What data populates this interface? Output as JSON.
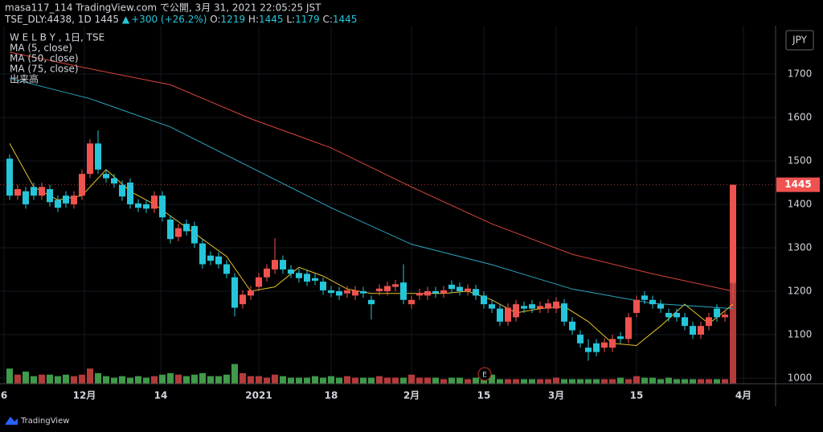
{
  "header": {
    "publisher": "masa117_114 TradingView.com で公開, 3月 31, 2021 22:05:25 JST",
    "symbol": "TSE_DLY:4438, 1D",
    "last": "1445",
    "arrow": "▲",
    "change": "+300 (+26.2%)",
    "ohlc": [
      {
        "label": "O:",
        "value": "1219"
      },
      {
        "label": "H:",
        "value": "1445"
      },
      {
        "label": "L:",
        "value": "1179"
      },
      {
        "label": "C:",
        "value": "1445"
      }
    ]
  },
  "chart_data": {
    "type": "candlestick",
    "title": "W E L B Y , 1日, TSE",
    "currency": "JPY",
    "volume_name": "出来高",
    "event_label": "E",
    "up_color": "#ef5350",
    "down_color": "#26c6da",
    "volume_up_color": "#b53a3a",
    "volume_down_color": "#3f9a4a",
    "open": [
      1505,
      1420,
      1430,
      1440,
      1420,
      1435,
      1410,
      1420,
      1400,
      1420,
      1470,
      1540,
      1470,
      1460,
      1445,
      1450,
      1402,
      1400,
      1390,
      1420,
      1365,
      1325,
      1355,
      1350,
      1310,
      1282,
      1280,
      1262,
      1232,
      1170,
      1190,
      1210,
      1232,
      1250,
      1272,
      1250,
      1242,
      1240,
      1230,
      1222,
      1202,
      1200,
      1195,
      1190,
      1200,
      1180,
      1200,
      1200,
      1210,
      1220,
      1170,
      1190,
      1190,
      1200,
      1195,
      1215,
      1210,
      1200,
      1205,
      1190,
      1170,
      1160,
      1130,
      1140,
      1166,
      1170,
      1160,
      1160,
      1160,
      1172,
      1130,
      1100,
      1070,
      1080,
      1070,
      1070,
      1096,
      1090,
      1150,
      1190,
      1180,
      1170,
      1150,
      1150,
      1140,
      1120,
      1100,
      1120,
      1160,
      1140,
      1219
    ],
    "high": [
      1515,
      1445,
      1440,
      1450,
      1450,
      1445,
      1420,
      1430,
      1430,
      1480,
      1550,
      1570,
      1480,
      1470,
      1455,
      1460,
      1412,
      1410,
      1430,
      1430,
      1375,
      1355,
      1365,
      1360,
      1320,
      1292,
      1290,
      1272,
      1242,
      1202,
      1212,
      1242,
      1262,
      1322,
      1282,
      1260,
      1252,
      1250,
      1240,
      1232,
      1212,
      1210,
      1212,
      1212,
      1210,
      1190,
      1216,
      1222,
      1226,
      1262,
      1190,
      1206,
      1210,
      1210,
      1212,
      1225,
      1220,
      1216,
      1215,
      1200,
      1180,
      1170,
      1172,
      1180,
      1176,
      1180,
      1176,
      1182,
      1186,
      1182,
      1140,
      1110,
      1090,
      1090,
      1092,
      1100,
      1106,
      1150,
      1190,
      1200,
      1190,
      1180,
      1160,
      1160,
      1150,
      1130,
      1130,
      1150,
      1170,
      1156,
      1445
    ],
    "low": [
      1410,
      1410,
      1390,
      1410,
      1410,
      1395,
      1382,
      1392,
      1390,
      1410,
      1460,
      1470,
      1450,
      1438,
      1408,
      1390,
      1382,
      1380,
      1380,
      1360,
      1310,
      1315,
      1328,
      1300,
      1252,
      1260,
      1252,
      1230,
      1142,
      1160,
      1180,
      1200,
      1222,
      1240,
      1240,
      1230,
      1220,
      1212,
      1214,
      1192,
      1186,
      1180,
      1185,
      1180,
      1185,
      1135,
      1190,
      1190,
      1200,
      1170,
      1160,
      1180,
      1180,
      1185,
      1185,
      1195,
      1190,
      1190,
      1180,
      1160,
      1150,
      1120,
      1120,
      1130,
      1150,
      1150,
      1150,
      1150,
      1150,
      1120,
      1100,
      1070,
      1040,
      1050,
      1060,
      1060,
      1080,
      1080,
      1140,
      1170,
      1160,
      1150,
      1130,
      1130,
      1110,
      1090,
      1090,
      1110,
      1130,
      1130,
      1179
    ],
    "close": [
      1420,
      1435,
      1400,
      1420,
      1440,
      1405,
      1392,
      1402,
      1420,
      1470,
      1540,
      1480,
      1460,
      1448,
      1418,
      1400,
      1392,
      1390,
      1420,
      1370,
      1320,
      1345,
      1338,
      1310,
      1262,
      1270,
      1262,
      1240,
      1162,
      1192,
      1202,
      1232,
      1252,
      1272,
      1250,
      1240,
      1230,
      1222,
      1224,
      1202,
      1196,
      1190,
      1202,
      1202,
      1195,
      1170,
      1206,
      1212,
      1216,
      1180,
      1180,
      1196,
      1200,
      1195,
      1202,
      1205,
      1200,
      1206,
      1190,
      1170,
      1160,
      1130,
      1162,
      1170,
      1160,
      1160,
      1166,
      1172,
      1176,
      1130,
      1110,
      1080,
      1060,
      1060,
      1082,
      1090,
      1090,
      1140,
      1180,
      1180,
      1170,
      1160,
      1140,
      1140,
      1120,
      1100,
      1120,
      1140,
      1140,
      1146,
      1445
    ],
    "volume": [
      10,
      6,
      8,
      5,
      6,
      6,
      5,
      6,
      5,
      6,
      10,
      7,
      5,
      4,
      5,
      4,
      5,
      4,
      5,
      6,
      7,
      6,
      5,
      6,
      7,
      5,
      5,
      6,
      13,
      7,
      5,
      5,
      4,
      6,
      5,
      4,
      4,
      4,
      5,
      4,
      5,
      4,
      5,
      4,
      4,
      4,
      5,
      4,
      4,
      4,
      6,
      4,
      4,
      4,
      3,
      4,
      4,
      3,
      4,
      3,
      6,
      3,
      3,
      3,
      3,
      3,
      3,
      3,
      4,
      3,
      3,
      3,
      3,
      3,
      3,
      3,
      4,
      3,
      5,
      4,
      4,
      3,
      4,
      3,
      3,
      3,
      3,
      3,
      3,
      3,
      130
    ],
    "indicators": [
      {
        "name": "MA (5, close)",
        "color": "#e6c229",
        "x": [
          0,
          3,
          6,
          9,
          12,
          15,
          18,
          21,
          24,
          27,
          30,
          33,
          36,
          39,
          42,
          45,
          48,
          51,
          54,
          57,
          60,
          63,
          66,
          69,
          72,
          75,
          78,
          81,
          84,
          87,
          90
        ],
        "values": [
          1540,
          1440,
          1410,
          1420,
          1480,
          1430,
          1400,
          1360,
          1320,
          1280,
          1200,
          1210,
          1255,
          1235,
          1205,
          1195,
          1195,
          1195,
          1195,
          1200,
          1180,
          1150,
          1160,
          1165,
          1130,
          1080,
          1075,
          1120,
          1170,
          1125,
          1170
        ]
      },
      {
        "name": "MA (50, close)",
        "color": "#2ba6c0",
        "x": [
          0,
          10,
          20,
          30,
          40,
          50,
          60,
          70,
          80,
          90
        ],
        "values": [
          1690,
          1643,
          1578,
          1485,
          1392,
          1308,
          1261,
          1205,
          1172,
          1160
        ]
      },
      {
        "name": "MA (75, close)",
        "color": "#d9443a",
        "x": [
          0,
          10,
          20,
          30,
          40,
          50,
          60,
          70,
          80,
          90
        ],
        "values": [
          1750,
          1712,
          1675,
          1597,
          1530,
          1440,
          1355,
          1285,
          1240,
          1200
        ]
      }
    ],
    "last_price": 1445,
    "xlim": [
      -1.2,
      95.3
    ],
    "xticks": [
      {
        "value": -0.7,
        "label": "6"
      },
      {
        "value": 9.3,
        "label": "12月"
      },
      {
        "value": 18.8,
        "label": "14"
      },
      {
        "value": 31,
        "label": "2021"
      },
      {
        "value": 40,
        "label": "18"
      },
      {
        "value": 50,
        "label": "2月"
      },
      {
        "value": 59,
        "label": "15"
      },
      {
        "value": 68,
        "label": "3月"
      },
      {
        "value": 78,
        "label": "15"
      },
      {
        "value": 91.3,
        "label": "4月"
      }
    ],
    "ylim": [
      987,
      1811
    ],
    "yticks": [
      1000,
      1100,
      1200,
      1300,
      1400,
      1500,
      1600,
      1700
    ],
    "grid": true
  }
}
